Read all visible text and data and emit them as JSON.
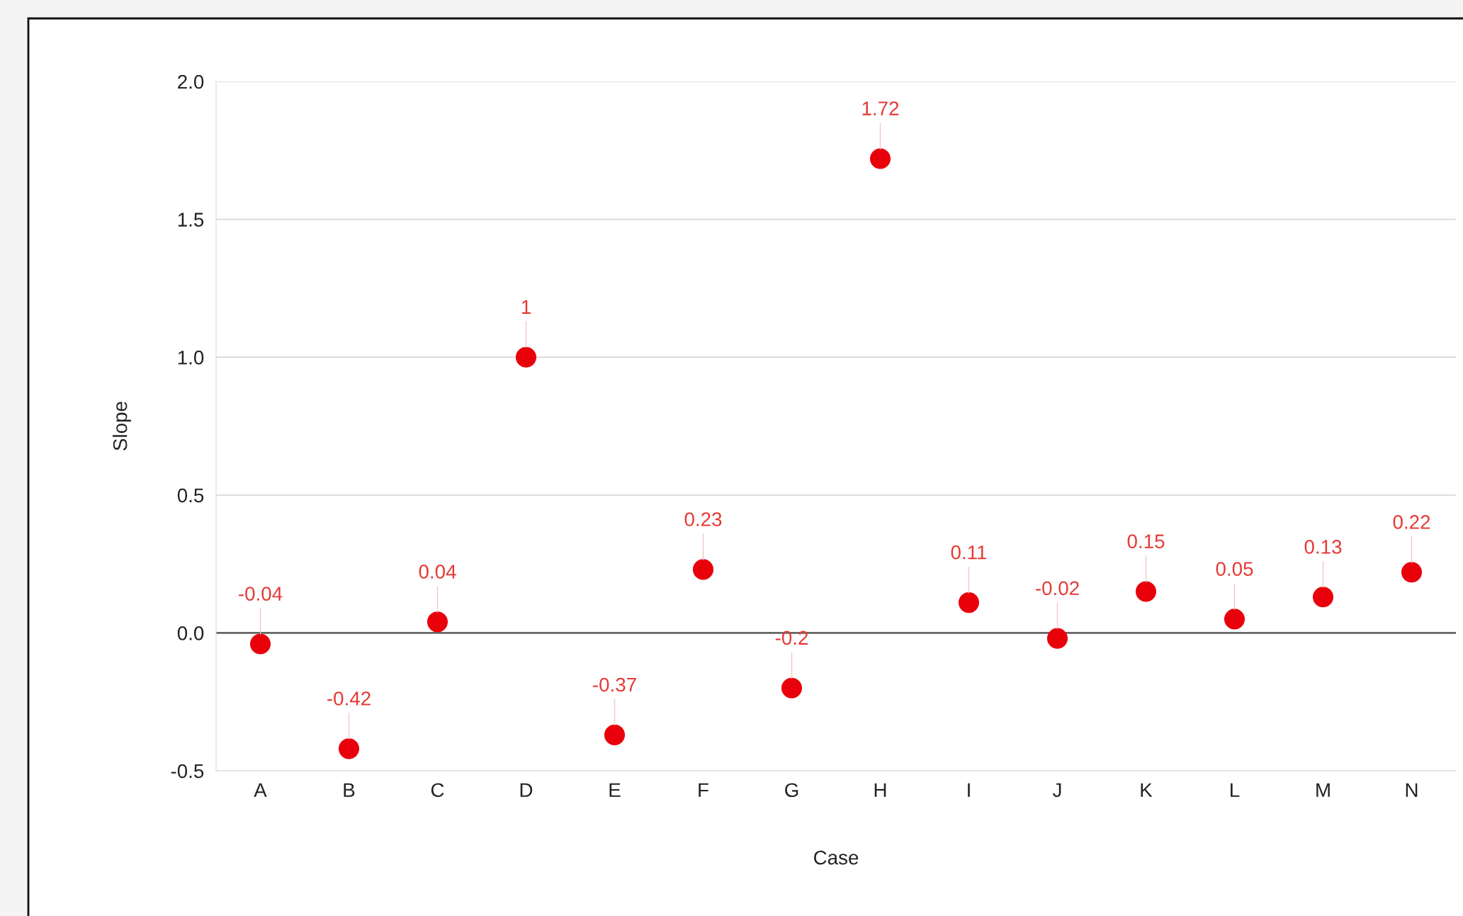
{
  "chart_data": {
    "type": "scatter",
    "xlabel": "Case",
    "ylabel": "Slope",
    "categories": [
      "A",
      "B",
      "C",
      "D",
      "E",
      "F",
      "G",
      "H",
      "I",
      "J",
      "K",
      "L",
      "M",
      "N"
    ],
    "series": [
      {
        "color": "#e8000b",
        "values": [
          -0.04,
          -0.42,
          0.04,
          1,
          -0.37,
          0.23,
          -0.2,
          1.72,
          0.11,
          -0.02,
          0.15,
          0.05,
          0.13,
          0.22
        ]
      }
    ],
    "ylim": [
      -0.5,
      2.0
    ],
    "yticks": [
      {
        "value": -0.5,
        "label": "-0.5"
      },
      {
        "value": 0,
        "label": "0.0"
      },
      {
        "value": 0.5,
        "label": "0.5"
      },
      {
        "value": 1,
        "label": "1.0"
      },
      {
        "value": 1.5,
        "label": "1.5"
      },
      {
        "value": 2,
        "label": "2.0"
      }
    ],
    "ref_lines": [
      {
        "axis": "y",
        "value": 0,
        "color": "#666666"
      }
    ],
    "grid": "y",
    "marker": "circle",
    "data_labels": true,
    "legend": false
  }
}
